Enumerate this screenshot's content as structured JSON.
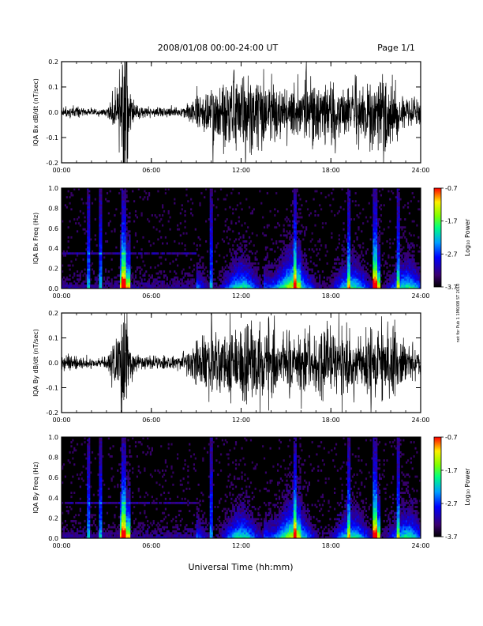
{
  "header": {
    "title": "2008/01/08  00:00-24:00 UT",
    "page": "Page 1/1"
  },
  "side_note": "not for Pub 1 1M0/08 ST 2010",
  "chart_data": [
    {
      "type": "line",
      "name": "bx-waveform",
      "ylabel": "IQA Bx dB/dt (nT/sec)",
      "xlim": [
        0,
        24
      ],
      "ylim": [
        -0.2,
        0.2
      ],
      "xticks": [
        "00:00",
        "06:00",
        "12:00",
        "18:00",
        "24:00"
      ],
      "yticks": [
        "-0.2",
        "-0.1",
        "0.0",
        "0.1",
        "0.2"
      ],
      "amplitude_by_hour": [
        0.03,
        0.03,
        0.02,
        0.02,
        0.2,
        0.05,
        0.02,
        0.03,
        0.02,
        0.07,
        0.15,
        0.2,
        0.2,
        0.2,
        0.15,
        0.12,
        0.14,
        0.2,
        0.2,
        0.12,
        0.14,
        0.2,
        0.2,
        0.1,
        0.08
      ]
    },
    {
      "type": "heatmap",
      "name": "bx-spectrogram",
      "ylabel": "IQA Bx Freq (Hz)",
      "xlim": [
        0,
        24
      ],
      "ylim": [
        0.0,
        1.0
      ],
      "xticks": [
        "00:00",
        "06:00",
        "12:00",
        "18:00",
        "24:00"
      ],
      "yticks": [
        "0.0",
        "0.2",
        "0.4",
        "0.6",
        "0.8",
        "1.0"
      ],
      "colorbar": {
        "label": "Log₁₀ Power",
        "min": -3.7,
        "max": -0.7,
        "ticks": [
          "-0.7",
          "-1.7",
          "-2.7",
          "-3.7"
        ]
      }
    },
    {
      "type": "line",
      "name": "by-waveform",
      "ylabel": "IQA By dB/dt (nT/sec)",
      "xlim": [
        0,
        24
      ],
      "ylim": [
        -0.2,
        0.2
      ],
      "xticks": [
        "00:00",
        "06:00",
        "12:00",
        "18:00",
        "24:00"
      ],
      "yticks": [
        "-0.2",
        "-0.1",
        "0.0",
        "0.1",
        "0.2"
      ],
      "amplitude_by_hour": [
        0.04,
        0.04,
        0.03,
        0.03,
        0.2,
        0.06,
        0.03,
        0.04,
        0.04,
        0.1,
        0.2,
        0.15,
        0.2,
        0.2,
        0.2,
        0.15,
        0.18,
        0.2,
        0.2,
        0.2,
        0.16,
        0.2,
        0.2,
        0.12,
        0.08
      ]
    },
    {
      "type": "heatmap",
      "name": "by-spectrogram",
      "ylabel": "IQA By Freq (Hz)",
      "xlabel": "Universal Time (hh:mm)",
      "xlim": [
        0,
        24
      ],
      "ylim": [
        0.0,
        1.0
      ],
      "xticks": [
        "00:00",
        "06:00",
        "12:00",
        "18:00",
        "24:00"
      ],
      "yticks": [
        "0.0",
        "0.2",
        "0.4",
        "0.6",
        "0.8",
        "1.0"
      ],
      "colorbar": {
        "label": "Log₁₀ Power",
        "min": -3.7,
        "max": -0.7,
        "ticks": [
          "-0.7",
          "-1.7",
          "-2.7",
          "-3.7"
        ]
      }
    }
  ]
}
